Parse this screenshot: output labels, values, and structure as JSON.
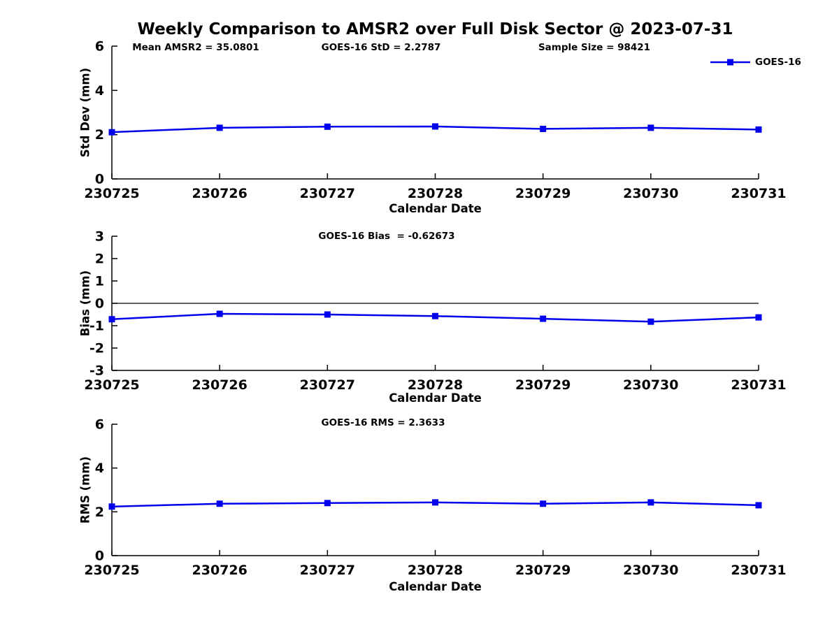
{
  "figure": {
    "title": "Weekly Comparison to AMSR2 over Full Disk Sector @ 2023-07-31",
    "background": "#ffffff",
    "axis_color": "#000000"
  },
  "legend": {
    "label": "GOES-16",
    "color": "#0000ee",
    "marker": "square",
    "position": "top-right"
  },
  "categories": [
    "230725",
    "230726",
    "230727",
    "230728",
    "230729",
    "230730",
    "230731"
  ],
  "chart_data": [
    {
      "type": "line",
      "id": "stddev",
      "ylabel": "Std Dev (mm)",
      "xlabel": "Calendar Date",
      "ylim": [
        0,
        6
      ],
      "yticks": [
        0,
        2,
        4,
        6
      ],
      "grid": false,
      "zero_line": false,
      "series": [
        {
          "name": "GOES-16",
          "color": "#0000ee",
          "marker": "square",
          "values": [
            2.11,
            2.31,
            2.36,
            2.37,
            2.26,
            2.31,
            2.23
          ]
        }
      ],
      "annotations": [
        {
          "text": "Mean AMSR2 = 35.0801"
        },
        {
          "text": "GOES-16 StD = 2.2787"
        },
        {
          "text": "Sample Size = 98421"
        }
      ]
    },
    {
      "type": "line",
      "id": "bias",
      "ylabel": "Bias (mm)",
      "xlabel": "Calendar Date",
      "ylim": [
        -3,
        3
      ],
      "yticks": [
        3,
        2,
        1,
        0,
        -1,
        -2,
        -3
      ],
      "grid": false,
      "zero_line": true,
      "series": [
        {
          "name": "GOES-16",
          "color": "#0000ee",
          "marker": "square",
          "values": [
            -0.71,
            -0.47,
            -0.5,
            -0.57,
            -0.69,
            -0.82,
            -0.63
          ]
        }
      ],
      "annotations": [
        {
          "text": "GOES-16 Bias  = -0.62673"
        }
      ]
    },
    {
      "type": "line",
      "id": "rms",
      "ylabel": "RMS (mm)",
      "xlabel": "Calendar Date",
      "ylim": [
        0,
        6
      ],
      "yticks": [
        0,
        2,
        4,
        6
      ],
      "grid": false,
      "zero_line": false,
      "series": [
        {
          "name": "GOES-16",
          "color": "#0000ee",
          "marker": "square",
          "values": [
            2.24,
            2.37,
            2.4,
            2.43,
            2.37,
            2.43,
            2.3
          ]
        }
      ],
      "annotations": [
        {
          "text": "GOES-16 RMS = 2.3633"
        }
      ]
    }
  ]
}
